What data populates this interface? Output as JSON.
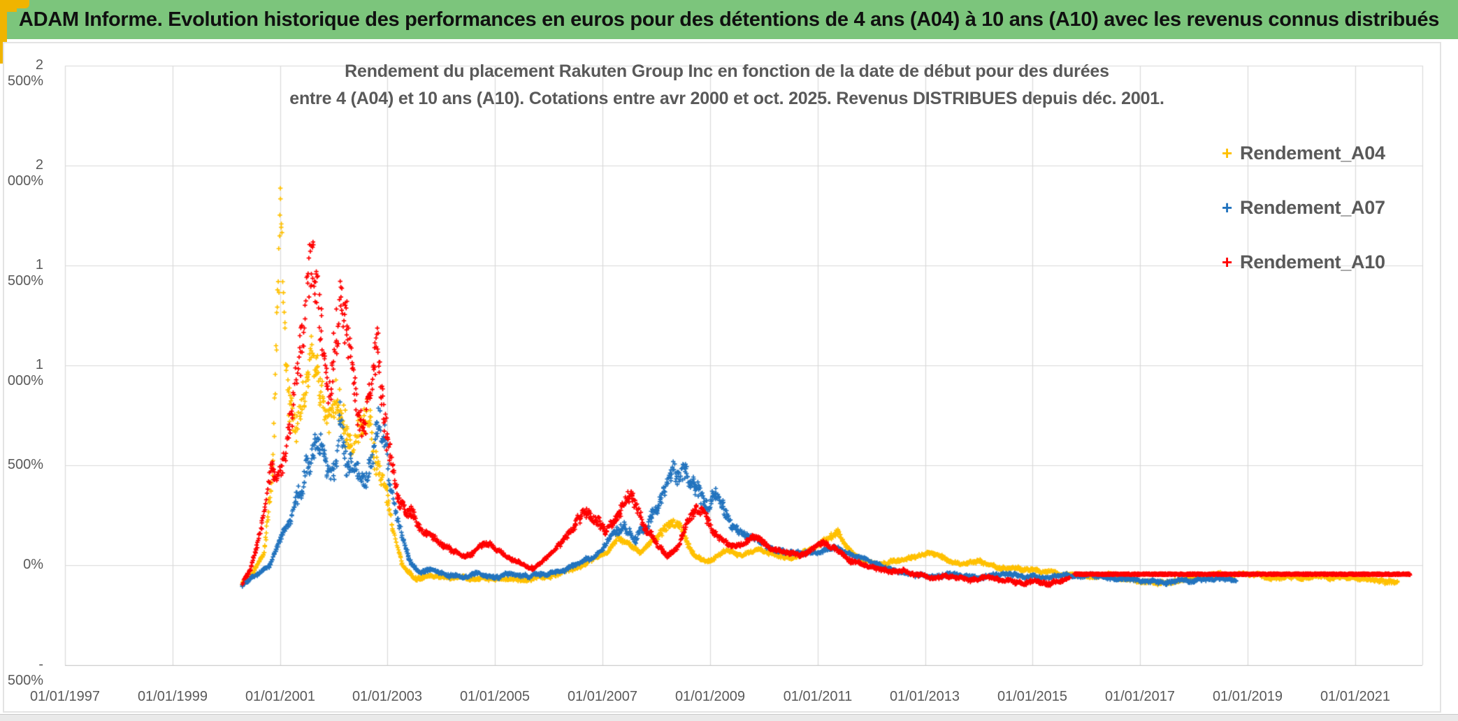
{
  "banner": {
    "title": "ADAM Informe. Evolution historique des performances en euros pour des détentions de 4 ans (A04) à 10 ans (A10) avec les revenus connus distribués"
  },
  "theme": {
    "banner_green": "#7CC57C",
    "accent_gold": "#F0B400",
    "text_gray": "#595959",
    "grid_color": "#D9D9D9",
    "axis_line_color": "#BFBFBF",
    "plot_background": "#FFFFFF"
  },
  "chart_data": {
    "type": "scatter",
    "title_line1": "Rendement du placement Rakuten Group Inc en fonction de la date de début pour des durées",
    "title_line2": "entre 4 (A04) et 10 ans (A10). Cotations entre avr 2000 et oct. 2025. Revenus DISTRIBUES depuis déc. 2001.",
    "legend_position": "right",
    "grid": true,
    "marker": "plus",
    "x_axis": {
      "ticks": [
        "01/01/1997",
        "01/01/1999",
        "01/01/2001",
        "01/01/2003",
        "01/01/2005",
        "01/01/2007",
        "01/01/2009",
        "01/01/2011",
        "01/01/2013",
        "01/01/2015",
        "01/01/2017",
        "01/01/2019",
        "01/01/2021"
      ],
      "tick_years": [
        1997,
        1999,
        2001,
        2003,
        2005,
        2007,
        2009,
        2011,
        2013,
        2015,
        2017,
        2019,
        2021
      ],
      "min_year": 1997,
      "max_year": 2022.25
    },
    "y_axis": {
      "ticks": [
        "2 500%",
        "2 000%",
        "1 500%",
        "1 000%",
        "500%",
        "0%",
        "- 500%"
      ],
      "tick_values": [
        2500,
        2000,
        1500,
        1000,
        500,
        0,
        -500
      ],
      "min": -500,
      "max": 2500,
      "unit": "%"
    },
    "series": [
      {
        "name": "Rendement_A04",
        "color": "#FFC000",
        "start": 2000.3,
        "end": 2021.8,
        "value_cap": 2010,
        "keypoints": [
          [
            2000.3,
            -95
          ],
          [
            2000.5,
            -40
          ],
          [
            2000.7,
            60
          ],
          [
            2000.85,
            420
          ],
          [
            2000.96,
            1300
          ],
          [
            2001.01,
            1850
          ],
          [
            2001.06,
            1250
          ],
          [
            2001.15,
            780
          ],
          [
            2001.3,
            620
          ],
          [
            2001.45,
            950
          ],
          [
            2001.6,
            1000
          ],
          [
            2001.75,
            860
          ],
          [
            2001.9,
            700
          ],
          [
            2002.05,
            900
          ],
          [
            2002.2,
            760
          ],
          [
            2002.35,
            620
          ],
          [
            2002.5,
            700
          ],
          [
            2002.65,
            760
          ],
          [
            2002.8,
            560
          ],
          [
            2002.95,
            360
          ],
          [
            2003.1,
            140
          ],
          [
            2003.3,
            -15
          ],
          [
            2003.5,
            -60
          ],
          [
            2003.8,
            -48
          ],
          [
            2004.1,
            -62
          ],
          [
            2004.5,
            -72
          ],
          [
            2005.0,
            -62
          ],
          [
            2005.5,
            -76
          ],
          [
            2006.0,
            -62
          ],
          [
            2006.4,
            -32
          ],
          [
            2006.8,
            18
          ],
          [
            2007.1,
            70
          ],
          [
            2007.3,
            140
          ],
          [
            2007.5,
            110
          ],
          [
            2007.7,
            70
          ],
          [
            2007.9,
            110
          ],
          [
            2008.1,
            170
          ],
          [
            2008.3,
            230
          ],
          [
            2008.5,
            160
          ],
          [
            2008.7,
            60
          ],
          [
            2008.9,
            20
          ],
          [
            2009.1,
            50
          ],
          [
            2009.3,
            80
          ],
          [
            2009.6,
            50
          ],
          [
            2009.9,
            80
          ],
          [
            2010.2,
            50
          ],
          [
            2010.5,
            30
          ],
          [
            2010.8,
            60
          ],
          [
            2011.1,
            120
          ],
          [
            2011.35,
            175
          ],
          [
            2011.6,
            70
          ],
          [
            2011.9,
            20
          ],
          [
            2012.2,
            0
          ],
          [
            2012.5,
            25
          ],
          [
            2012.8,
            45
          ],
          [
            2013.1,
            55
          ],
          [
            2013.4,
            25
          ],
          [
            2013.7,
            5
          ],
          [
            2014.0,
            15
          ],
          [
            2014.4,
            -10
          ],
          [
            2014.8,
            -22
          ],
          [
            2015.2,
            -35
          ],
          [
            2015.6,
            -46
          ],
          [
            2016.0,
            -55
          ],
          [
            2016.5,
            -65
          ],
          [
            2017.0,
            -78
          ],
          [
            2017.3,
            -88
          ],
          [
            2017.7,
            -72
          ],
          [
            2018.1,
            -60
          ],
          [
            2018.5,
            -52
          ],
          [
            2018.9,
            -47
          ],
          [
            2019.3,
            -58
          ],
          [
            2019.7,
            -70
          ],
          [
            2020.1,
            -63
          ],
          [
            2020.5,
            -53
          ],
          [
            2020.9,
            -60
          ],
          [
            2021.3,
            -75
          ],
          [
            2021.55,
            -88
          ],
          [
            2021.8,
            -80
          ]
        ]
      },
      {
        "name": "Rendement_A07",
        "color": "#2273BE",
        "start": 2000.3,
        "end": 2018.8,
        "value_cap": 865,
        "keypoints": [
          [
            2000.3,
            -100
          ],
          [
            2000.55,
            -50
          ],
          [
            2000.8,
            -5
          ],
          [
            2001.0,
            120
          ],
          [
            2001.2,
            230
          ],
          [
            2001.4,
            390
          ],
          [
            2001.55,
            520
          ],
          [
            2001.7,
            650
          ],
          [
            2001.85,
            540
          ],
          [
            2002.0,
            450
          ],
          [
            2002.12,
            780
          ],
          [
            2002.25,
            580
          ],
          [
            2002.4,
            500
          ],
          [
            2002.55,
            430
          ],
          [
            2002.7,
            540
          ],
          [
            2002.85,
            800
          ],
          [
            2002.95,
            660
          ],
          [
            2003.05,
            430
          ],
          [
            2003.2,
            210
          ],
          [
            2003.4,
            30
          ],
          [
            2003.6,
            -40
          ],
          [
            2003.85,
            -25
          ],
          [
            2004.1,
            -45
          ],
          [
            2004.4,
            -58
          ],
          [
            2004.7,
            -48
          ],
          [
            2005.0,
            -58
          ],
          [
            2005.3,
            -46
          ],
          [
            2005.6,
            -58
          ],
          [
            2005.9,
            -48
          ],
          [
            2006.2,
            -30
          ],
          [
            2006.5,
            -8
          ],
          [
            2006.8,
            35
          ],
          [
            2007.0,
            80
          ],
          [
            2007.2,
            160
          ],
          [
            2007.4,
            215
          ],
          [
            2007.6,
            150
          ],
          [
            2007.8,
            200
          ],
          [
            2008.0,
            280
          ],
          [
            2008.2,
            390
          ],
          [
            2008.4,
            430
          ],
          [
            2008.55,
            450
          ],
          [
            2008.7,
            380
          ],
          [
            2008.9,
            300
          ],
          [
            2009.1,
            340
          ],
          [
            2009.3,
            280
          ],
          [
            2009.5,
            180
          ],
          [
            2009.7,
            150
          ],
          [
            2009.9,
            110
          ],
          [
            2010.1,
            75
          ],
          [
            2010.4,
            55
          ],
          [
            2010.7,
            70
          ],
          [
            2011.0,
            60
          ],
          [
            2011.3,
            80
          ],
          [
            2011.6,
            55
          ],
          [
            2011.9,
            25
          ],
          [
            2012.2,
            -5
          ],
          [
            2012.5,
            -35
          ],
          [
            2012.8,
            -55
          ],
          [
            2013.1,
            -60
          ],
          [
            2013.4,
            -42
          ],
          [
            2013.7,
            -52
          ],
          [
            2014.0,
            -57
          ],
          [
            2014.4,
            -47
          ],
          [
            2014.8,
            -57
          ],
          [
            2015.2,
            -62
          ],
          [
            2015.6,
            -50
          ],
          [
            2015.9,
            -60
          ],
          [
            2016.2,
            -60
          ],
          [
            2016.6,
            -70
          ],
          [
            2017.0,
            -80
          ],
          [
            2017.4,
            -90
          ],
          [
            2017.8,
            -82
          ],
          [
            2018.2,
            -72
          ],
          [
            2018.5,
            -68
          ],
          [
            2018.8,
            -75
          ]
        ]
      },
      {
        "name": "Rendement_A10",
        "color": "#FF0000",
        "start": 2000.3,
        "end": 2015.7,
        "value_cap": 1625,
        "flat_tail": {
          "from": 2015.78,
          "to": 2022.02,
          "value": -45
        },
        "keypoints": [
          [
            2000.3,
            -95
          ],
          [
            2000.45,
            -20
          ],
          [
            2000.6,
            120
          ],
          [
            2000.75,
            340
          ],
          [
            2000.85,
            490
          ],
          [
            2000.95,
            430
          ],
          [
            2001.05,
            530
          ],
          [
            2001.2,
            710
          ],
          [
            2001.35,
            960
          ],
          [
            2001.5,
            1290
          ],
          [
            2001.62,
            1460
          ],
          [
            2001.72,
            1380
          ],
          [
            2001.82,
            1090
          ],
          [
            2001.92,
            910
          ],
          [
            2002.02,
            1160
          ],
          [
            2002.12,
            1360
          ],
          [
            2002.22,
            1190
          ],
          [
            2002.32,
            960
          ],
          [
            2002.42,
            790
          ],
          [
            2002.55,
            660
          ],
          [
            2002.7,
            910
          ],
          [
            2002.8,
            1120
          ],
          [
            2002.9,
            860
          ],
          [
            2003.0,
            630
          ],
          [
            2003.1,
            490
          ],
          [
            2003.2,
            340
          ],
          [
            2003.35,
            260
          ],
          [
            2003.5,
            220
          ],
          [
            2003.65,
            175
          ],
          [
            2003.8,
            150
          ],
          [
            2004.0,
            110
          ],
          [
            2004.2,
            70
          ],
          [
            2004.45,
            45
          ],
          [
            2004.7,
            90
          ],
          [
            2004.9,
            120
          ],
          [
            2005.1,
            70
          ],
          [
            2005.3,
            28
          ],
          [
            2005.5,
            8
          ],
          [
            2005.7,
            -10
          ],
          [
            2005.9,
            20
          ],
          [
            2006.1,
            70
          ],
          [
            2006.3,
            130
          ],
          [
            2006.5,
            200
          ],
          [
            2006.7,
            265
          ],
          [
            2006.85,
            240
          ],
          [
            2007.05,
            140
          ],
          [
            2007.2,
            210
          ],
          [
            2007.35,
            280
          ],
          [
            2007.5,
            340
          ],
          [
            2007.65,
            280
          ],
          [
            2007.8,
            180
          ],
          [
            2008.0,
            120
          ],
          [
            2008.2,
            55
          ],
          [
            2008.4,
            90
          ],
          [
            2008.55,
            200
          ],
          [
            2008.75,
            280
          ],
          [
            2008.9,
            250
          ],
          [
            2009.05,
            165
          ],
          [
            2009.25,
            120
          ],
          [
            2009.45,
            90
          ],
          [
            2009.65,
            115
          ],
          [
            2009.85,
            135
          ],
          [
            2010.1,
            95
          ],
          [
            2010.4,
            60
          ],
          [
            2010.65,
            42
          ],
          [
            2010.9,
            75
          ],
          [
            2011.1,
            115
          ],
          [
            2011.3,
            85
          ],
          [
            2011.5,
            55
          ],
          [
            2011.7,
            20
          ],
          [
            2011.9,
            0
          ],
          [
            2012.1,
            -20
          ],
          [
            2012.35,
            -42
          ],
          [
            2012.6,
            -32
          ],
          [
            2012.85,
            -52
          ],
          [
            2013.1,
            -62
          ],
          [
            2013.35,
            -50
          ],
          [
            2013.6,
            -64
          ],
          [
            2013.85,
            -74
          ],
          [
            2014.1,
            -60
          ],
          [
            2014.35,
            -70
          ],
          [
            2014.6,
            -80
          ],
          [
            2014.85,
            -86
          ],
          [
            2015.1,
            -88
          ],
          [
            2015.4,
            -80
          ],
          [
            2015.7,
            -62
          ]
        ]
      }
    ]
  }
}
